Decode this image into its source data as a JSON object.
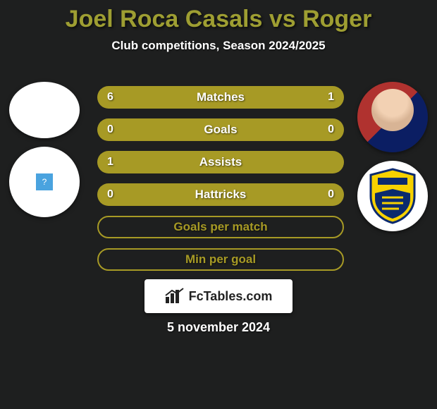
{
  "title": {
    "text": "Joel Roca Casals vs Roger",
    "color": "#9e9e32",
    "fontsize": 34
  },
  "subtitle": {
    "text": "Club competitions, Season 2024/2025",
    "color": "#ffffff",
    "fontsize": 17
  },
  "background_color": "#1e1f1f",
  "bars": {
    "full_width": 350,
    "height": 32,
    "gap": 14,
    "corner_radius": 16,
    "label_fontsize": 17,
    "value_fontsize": 16,
    "bar_color": "#a79a25",
    "outline_color": "#a79a25",
    "text_color": "#ffffff",
    "rows": [
      {
        "label": "Matches",
        "left_val": "6",
        "right_val": "1",
        "left_pct": 86,
        "right_pct": 14,
        "filled": true,
        "show_vals": true
      },
      {
        "label": "Goals",
        "left_val": "0",
        "right_val": "0",
        "left_pct": 50,
        "right_pct": 50,
        "filled": true,
        "show_vals": true
      },
      {
        "label": "Assists",
        "left_val": "1",
        "right_val": "",
        "left_pct": 100,
        "right_pct": 0,
        "filled": true,
        "show_vals": true
      },
      {
        "label": "Hattricks",
        "left_val": "0",
        "right_val": "0",
        "left_pct": 50,
        "right_pct": 50,
        "filled": true,
        "show_vals": true
      },
      {
        "label": "Goals per match",
        "left_val": "",
        "right_val": "",
        "left_pct": 0,
        "right_pct": 0,
        "filled": false,
        "show_vals": false
      },
      {
        "label": "Min per goal",
        "left_val": "",
        "right_val": "",
        "left_pct": 0,
        "right_pct": 0,
        "filled": false,
        "show_vals": false
      }
    ]
  },
  "left_player": {
    "name": "Joel Roca Casals",
    "avatar_bg": "#ffffff"
  },
  "right_player": {
    "name": "Roger",
    "shirt_colors": [
      "#b0322f",
      "#0b1e63"
    ]
  },
  "right_team": {
    "name": "Cádiz CF",
    "shield_primary": "#f6d100",
    "shield_secondary": "#0b2a6e"
  },
  "footer": {
    "brand": "FcTables.com",
    "brand_color": "#222222",
    "bg": "#ffffff"
  },
  "date": {
    "text": "5 november 2024",
    "fontsize": 18
  }
}
